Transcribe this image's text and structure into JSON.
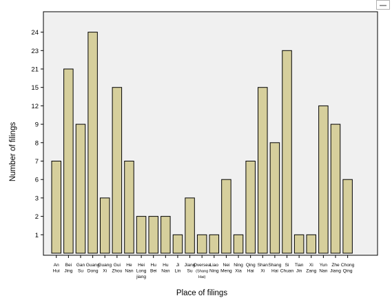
{
  "chart_data": {
    "type": "bar",
    "xlabel": "Place of filings",
    "ylabel": "Number of filings",
    "categories": [
      [
        "An",
        "Hui"
      ],
      [
        "Bei",
        "Jing"
      ],
      [
        "Gan",
        "Su"
      ],
      [
        "Guang",
        "Dong"
      ],
      [
        "Guang",
        "Xi"
      ],
      [
        "Gui",
        "Zhou"
      ],
      [
        "He",
        "Nan"
      ],
      [
        "Hei",
        "Long",
        "jiang"
      ],
      [
        "Hu",
        "Bei"
      ],
      [
        "Hu",
        "Nan"
      ],
      [
        "Ji",
        "Lin"
      ],
      [
        "Jiang",
        "Su"
      ],
      [
        "Oversea",
        "(Shang",
        "Hai)"
      ],
      [
        "Liao",
        "Ning"
      ],
      [
        "Nei",
        "Meng"
      ],
      [
        "Ning",
        "Xia"
      ],
      [
        "Qing",
        "Hai"
      ],
      [
        "Shan",
        "Xi"
      ],
      [
        "Shang",
        "Hai"
      ],
      [
        "Si",
        "Chuan"
      ],
      [
        "Tian",
        "Jin"
      ],
      [
        "Xi",
        "Zang"
      ],
      [
        "Yun",
        "Nan"
      ],
      [
        "Zhe",
        "Jiang"
      ],
      [
        "Chong",
        "Qing"
      ]
    ],
    "values": [
      7,
      21,
      9,
      24,
      3,
      15,
      7,
      2,
      2,
      2,
      1,
      3,
      1,
      1,
      6,
      1,
      7,
      15,
      8,
      23,
      1,
      1,
      12,
      9,
      6
    ],
    "y_ticks": [
      1,
      2,
      3,
      6,
      7,
      8,
      9,
      12,
      15,
      21,
      23,
      24
    ],
    "grid": false,
    "legend": "none",
    "colors": {
      "bar_fill": "#d6cf9c",
      "plot_bg": "#f0f0f0",
      "axis": "#000000"
    }
  }
}
